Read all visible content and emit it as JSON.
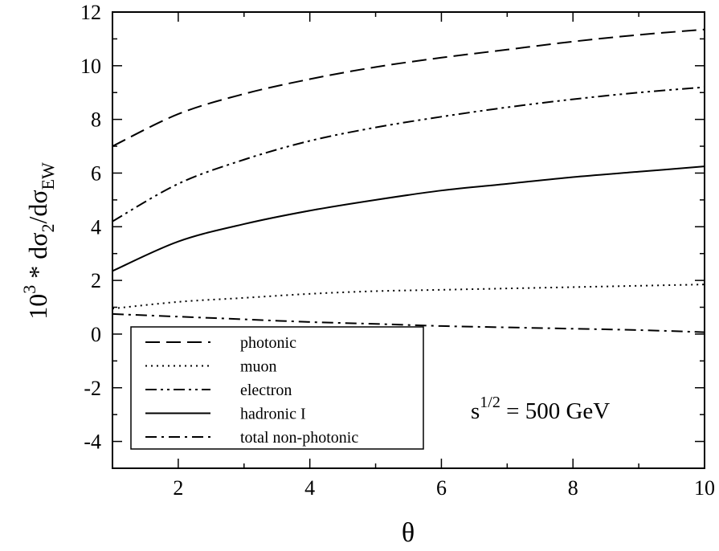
{
  "chart_data": {
    "type": "line",
    "title": "",
    "xlabel": "θ",
    "ylabel": {
      "base": "10",
      "sup": "3",
      "mid": " * dσ",
      "sub1": "2",
      "slash": "/dσ",
      "sub2": "EW"
    },
    "xlim": [
      1,
      10
    ],
    "ylim": [
      -5,
      12
    ],
    "x_ticks": [
      2,
      4,
      6,
      8,
      10
    ],
    "x_tick_labels": [
      "2",
      "4",
      "6",
      "8",
      "10"
    ],
    "y_ticks": [
      -4,
      -2,
      0,
      2,
      4,
      6,
      8,
      10,
      12
    ],
    "y_tick_labels": [
      "-4",
      "-2",
      "0",
      "2",
      "4",
      "6",
      "8",
      "10",
      "12"
    ],
    "grid": false,
    "legend_position": "bottom-left",
    "annotation": {
      "base": "s",
      "sup": "1/2",
      "rest": " = 500 GeV"
    },
    "x": [
      1,
      2,
      3,
      4,
      5,
      6,
      7,
      8,
      9,
      10
    ],
    "series": [
      {
        "name": "photonic",
        "style": "dashed",
        "values": [
          7.0,
          8.2,
          8.95,
          9.5,
          9.95,
          10.3,
          10.6,
          10.9,
          11.15,
          11.35
        ]
      },
      {
        "name": "muon",
        "style": "dotted",
        "values": [
          0.95,
          1.2,
          1.35,
          1.5,
          1.6,
          1.65,
          1.7,
          1.75,
          1.8,
          1.85
        ]
      },
      {
        "name": "electron",
        "style": "dash-dot-dot",
        "values": [
          4.2,
          5.6,
          6.5,
          7.2,
          7.7,
          8.1,
          8.45,
          8.75,
          9.0,
          9.2
        ]
      },
      {
        "name": "hadronic I",
        "style": "solid",
        "values": [
          2.35,
          3.45,
          4.1,
          4.6,
          5.0,
          5.35,
          5.6,
          5.85,
          6.05,
          6.25
        ]
      },
      {
        "name": "total non-photonic",
        "style": "dash-dot",
        "values": [
          0.75,
          0.65,
          0.55,
          0.45,
          0.38,
          0.3,
          0.25,
          0.2,
          0.15,
          0.07
        ]
      }
    ]
  }
}
